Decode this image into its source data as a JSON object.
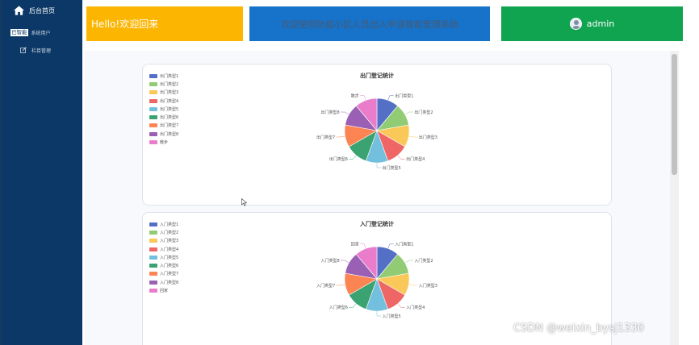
{
  "sidebar": {
    "home_label": "后台首页",
    "users_tag": "已智能",
    "users_label": "系统用户",
    "columns_label": "栏目管理"
  },
  "header": {
    "hello": "Hello!欢迎回来",
    "welcome": "欢迎使用防疫小区人员出入申请智能管理系统",
    "username": "admin"
  },
  "colors": {
    "sidebar": "#0b3866",
    "hello_bg": "#fcb500",
    "welcome_bg": "#1772c9",
    "user_bg": "#10a451",
    "palette": [
      "#5470c6",
      "#91cc75",
      "#fac858",
      "#ee6666",
      "#73c0de",
      "#3ba272",
      "#fc8452",
      "#9a60b4",
      "#ea7ccc"
    ]
  },
  "watermark": "CSDN @weixin_bysj1330",
  "chart_data": [
    {
      "type": "pie",
      "title": "出门登记统计",
      "legend_position": "top-left",
      "categories": [
        "出门类型1",
        "出门类型2",
        "出门类型3",
        "出门类型4",
        "出门类型5",
        "出门类型6",
        "出门类型7",
        "出门类型8",
        "散步"
      ],
      "values": [
        1,
        1,
        1,
        1,
        1,
        1,
        1,
        1,
        1
      ]
    },
    {
      "type": "pie",
      "title": "入门登记统计",
      "legend_position": "top-left",
      "categories": [
        "入门类型1",
        "入门类型2",
        "入门类型3",
        "入门类型4",
        "入门类型5",
        "入门类型6",
        "入门类型7",
        "入门类型8",
        "回家"
      ],
      "values": [
        1,
        1,
        1,
        1,
        1,
        1,
        1,
        1,
        1
      ]
    }
  ]
}
